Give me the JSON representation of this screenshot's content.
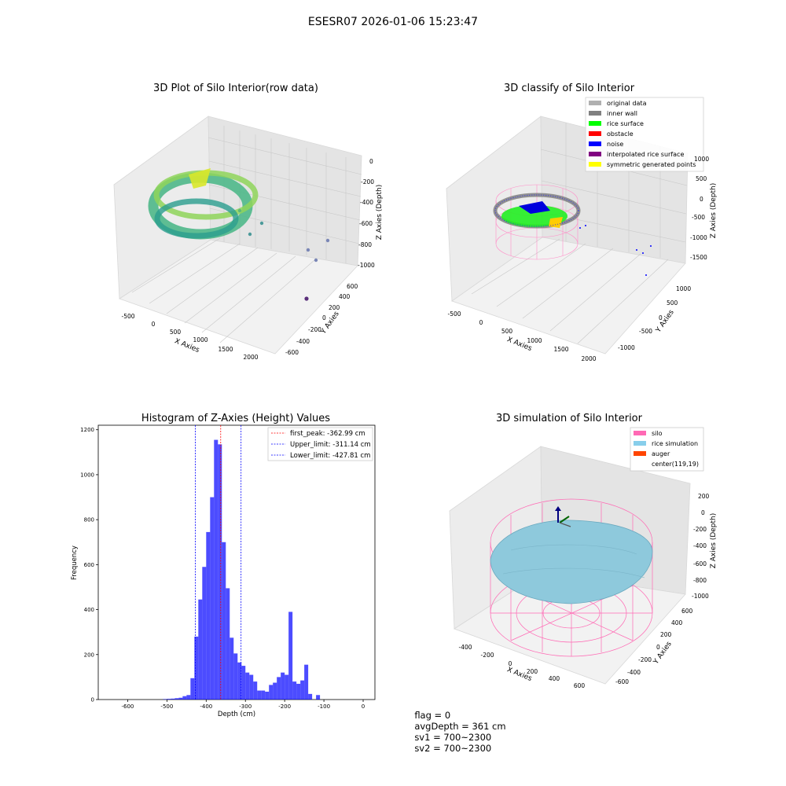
{
  "figure": {
    "suptitle": "ESESR07 2026-01-06 15:23:47"
  },
  "status_bar": {
    "flag": "flag = 0",
    "avg_depth": "avgDepth = 361 cm",
    "sv1": "sv1 = 700~2300",
    "sv2": "sv2 = 700~2300"
  },
  "colors": {
    "silo": "#ff69b4",
    "rice_simulation": "#87ceeb",
    "auger": "#ff4500",
    "hist_bar": "#0000ff",
    "first_peak_line": "#ff0000",
    "limit_line": "#0000ff"
  },
  "chart_data": [
    {
      "type": "scatter",
      "projection": "3d",
      "title": "3D Plot of Silo Interior(row data)",
      "xlabel": "X Axies",
      "ylabel": "Y Axies",
      "zlabel": "Z Axies (Depth)",
      "x_ticks": [
        "-500",
        "0",
        "500",
        "1000",
        "1500",
        "2000"
      ],
      "y_ticks": [
        "-600",
        "-400",
        "-200",
        "0",
        "200",
        "400",
        "600"
      ],
      "z_ticks": [
        "-1000",
        "-800",
        "-600",
        "-400",
        "-200",
        "0"
      ],
      "colormap": "viridis",
      "grid": true
    },
    {
      "type": "scatter",
      "projection": "3d",
      "title": "3D classify of Silo Interior",
      "xlabel": "X Axies",
      "ylabel": "Y Axies",
      "zlabel": "Z Axies (Depth)",
      "x_ticks": [
        "-500",
        "0",
        "500",
        "1000",
        "1500",
        "2000"
      ],
      "y_ticks": [
        "-1000",
        "-500",
        "0",
        "500",
        "1000"
      ],
      "z_ticks": [
        "-1500",
        "-1000",
        "-500",
        "0",
        "500",
        "1000"
      ],
      "legend_position": "top-right",
      "legend": [
        {
          "label": "original data",
          "color": "#b0b0b0"
        },
        {
          "label": "inner wall",
          "color": "#808080"
        },
        {
          "label": "rice surface",
          "color": "#00ff00"
        },
        {
          "label": "obstacle",
          "color": "#ff0000"
        },
        {
          "label": "noise",
          "color": "#0000ff"
        },
        {
          "label": "interpolated rice surface",
          "color": "#800080"
        },
        {
          "label": "symmetric generated points",
          "color": "#ffff00"
        }
      ],
      "grid": true
    },
    {
      "type": "bar",
      "title": "Histogram of Z-Axies (Height) Values",
      "xlabel": "Depth (cm)",
      "ylabel": "Frequency",
      "xlim": [
        -675,
        30
      ],
      "ylim": [
        0,
        1220
      ],
      "x_ticks": [
        -600,
        -500,
        -400,
        -300,
        -200,
        -100,
        0
      ],
      "y_ticks": [
        0,
        200,
        400,
        600,
        800,
        1000,
        1200
      ],
      "bin_width": 10,
      "bins": [
        {
          "x": -510,
          "count": 2
        },
        {
          "x": -500,
          "count": 3
        },
        {
          "x": -490,
          "count": 4
        },
        {
          "x": -480,
          "count": 6
        },
        {
          "x": -470,
          "count": 8
        },
        {
          "x": -460,
          "count": 15
        },
        {
          "x": -450,
          "count": 20
        },
        {
          "x": -440,
          "count": 95
        },
        {
          "x": -430,
          "count": 280
        },
        {
          "x": -420,
          "count": 445
        },
        {
          "x": -410,
          "count": 590
        },
        {
          "x": -400,
          "count": 745
        },
        {
          "x": -390,
          "count": 900
        },
        {
          "x": -380,
          "count": 1155
        },
        {
          "x": -370,
          "count": 1135
        },
        {
          "x": -360,
          "count": 700
        },
        {
          "x": -350,
          "count": 495
        },
        {
          "x": -340,
          "count": 275
        },
        {
          "x": -330,
          "count": 205
        },
        {
          "x": -320,
          "count": 165
        },
        {
          "x": -310,
          "count": 150
        },
        {
          "x": -300,
          "count": 120
        },
        {
          "x": -290,
          "count": 110
        },
        {
          "x": -280,
          "count": 80
        },
        {
          "x": -270,
          "count": 40
        },
        {
          "x": -260,
          "count": 40
        },
        {
          "x": -250,
          "count": 35
        },
        {
          "x": -240,
          "count": 65
        },
        {
          "x": -230,
          "count": 75
        },
        {
          "x": -220,
          "count": 100
        },
        {
          "x": -210,
          "count": 120
        },
        {
          "x": -200,
          "count": 110
        },
        {
          "x": -190,
          "count": 390
        },
        {
          "x": -180,
          "count": 80
        },
        {
          "x": -170,
          "count": 70
        },
        {
          "x": -160,
          "count": 85
        },
        {
          "x": -150,
          "count": 155
        },
        {
          "x": -140,
          "count": 25
        },
        {
          "x": -120,
          "count": 20
        }
      ],
      "vlines": [
        {
          "label": "first_peak: -362.99 cm",
          "x": -362.99,
          "color": "#ff0000"
        },
        {
          "label": "Upper_limit: -311.14 cm",
          "x": -311.14,
          "color": "#0000ff"
        },
        {
          "label": "Lower_limit: -427.81 cm",
          "x": -427.81,
          "color": "#0000ff"
        }
      ],
      "legend_position": "top-right"
    },
    {
      "type": "surface",
      "projection": "3d",
      "title": "3D simulation of Silo Interior",
      "xlabel": "X Axies",
      "ylabel": "Y Axies",
      "zlabel": "Z Axies (Depth)",
      "x_ticks": [
        "-400",
        "-200",
        "0",
        "200",
        "400",
        "600"
      ],
      "y_ticks": [
        "-600",
        "-400",
        "-200",
        "0",
        "200",
        "400",
        "600"
      ],
      "z_ticks": [
        "-1000",
        "-800",
        "-600",
        "-400",
        "-200",
        "0",
        "200"
      ],
      "legend_position": "top-right",
      "legend": [
        {
          "label": "silo",
          "color": "#ff69b4"
        },
        {
          "label": "rice simulation",
          "color": "#87ceeb"
        },
        {
          "label": "auger",
          "color": "#ff4500"
        },
        {
          "label": "center(119,19)",
          "color": ""
        }
      ],
      "grid": true
    }
  ]
}
